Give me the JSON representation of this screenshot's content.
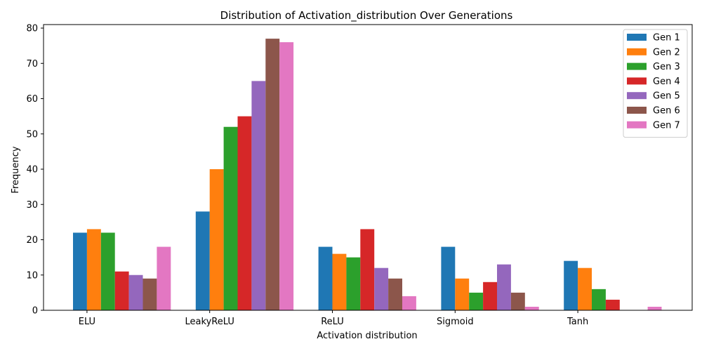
{
  "chart_data": {
    "type": "bar",
    "title": "Distribution of Activation_distribution Over Generations",
    "xlabel": "Activation distribution",
    "ylabel": "Frequency",
    "categories": [
      "ELU",
      "LeakyReLU",
      "ReLU",
      "Sigmoid",
      "Tanh"
    ],
    "ylim": [
      0,
      81
    ],
    "yticks": [
      0,
      10,
      20,
      30,
      40,
      50,
      60,
      70,
      80
    ],
    "grid": false,
    "legend_position": "top-right",
    "series": [
      {
        "name": "Gen 1",
        "color": "#1f77b4",
        "values": [
          22,
          28,
          18,
          18,
          14
        ]
      },
      {
        "name": "Gen 2",
        "color": "#ff7f0e",
        "values": [
          23,
          40,
          16,
          9,
          12
        ]
      },
      {
        "name": "Gen 3",
        "color": "#2ca02c",
        "values": [
          22,
          52,
          15,
          5,
          6
        ]
      },
      {
        "name": "Gen 4",
        "color": "#d62728",
        "values": [
          11,
          55,
          23,
          8,
          3
        ]
      },
      {
        "name": "Gen 5",
        "color": "#9467bd",
        "values": [
          10,
          65,
          12,
          13,
          0
        ]
      },
      {
        "name": "Gen 6",
        "color": "#8c564b",
        "values": [
          9,
          77,
          9,
          5,
          0
        ]
      },
      {
        "name": "Gen 7",
        "color": "#e377c2",
        "values": [
          18,
          76,
          4,
          1,
          1
        ]
      }
    ]
  }
}
